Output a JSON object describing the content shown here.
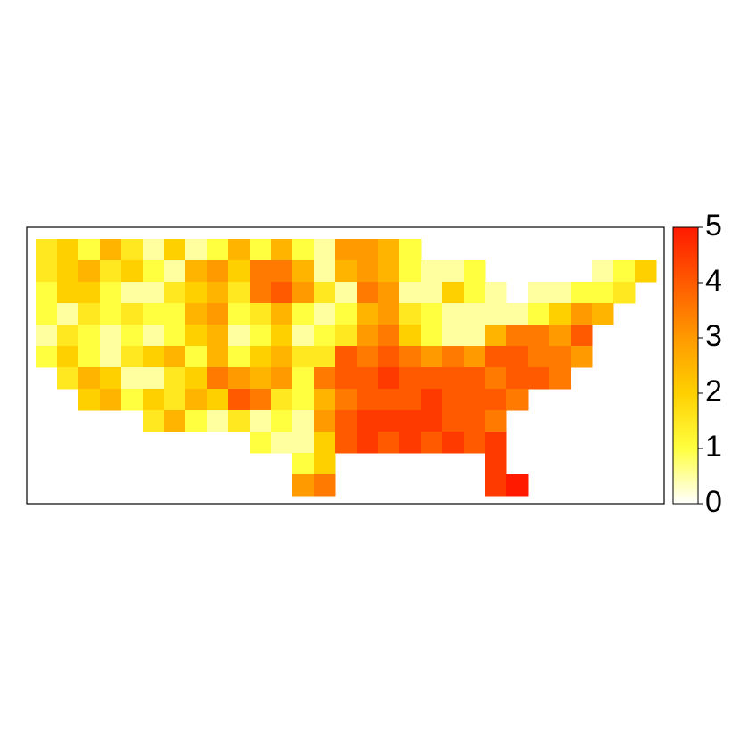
{
  "chart_data": {
    "type": "heatmap",
    "zlim": [
      0,
      5
    ],
    "zticks": [
      0,
      1,
      2,
      3,
      4,
      5
    ],
    "colors": [
      "#ffffff",
      "#ffff40",
      "#ffd000",
      "#ff9a00",
      "#ff5a00",
      "#ff1a00"
    ],
    "values": [
      [
        1.5,
        2,
        1,
        2.5,
        1.5,
        0.5,
        2,
        0.5,
        1,
        2.5,
        1,
        2.5,
        1,
        0.5,
        3,
        3,
        2.5,
        1,
        null,
        null,
        null,
        null,
        null,
        null,
        null,
        null,
        null,
        null,
        null
      ],
      [
        1.5,
        2,
        2.5,
        1.5,
        2,
        1,
        0.5,
        2.5,
        3,
        2,
        3.5,
        3.5,
        2.5,
        0.5,
        2.5,
        3,
        2.5,
        1,
        0.5,
        0.5,
        1,
        null,
        null,
        null,
        null,
        null,
        0.5,
        1,
        2
      ],
      [
        1,
        2,
        2,
        1,
        0.5,
        0.5,
        1.5,
        2,
        2.5,
        1.5,
        3.5,
        4,
        3,
        1.5,
        0.5,
        3.5,
        3,
        0.5,
        0.5,
        2,
        1,
        0.5,
        null,
        0.5,
        0.5,
        1,
        1,
        1.5,
        null
      ],
      [
        1,
        0.5,
        1.5,
        1,
        1.5,
        1,
        1,
        2.5,
        3,
        1,
        1.5,
        2.5,
        1,
        0.5,
        1,
        2.5,
        3,
        1.5,
        1,
        0.5,
        0.5,
        0.5,
        0.5,
        1,
        2,
        3,
        2.5,
        null,
        null
      ],
      [
        0.5,
        1.5,
        1,
        0.5,
        1,
        0.5,
        1,
        2,
        2.5,
        0.5,
        1,
        2,
        0.5,
        1,
        1.5,
        3,
        3.5,
        2,
        1,
        0.5,
        0.5,
        2.5,
        3.5,
        3.5,
        3,
        4,
        null,
        null,
        null
      ],
      [
        1,
        2,
        1,
        0.5,
        1.5,
        2,
        2.5,
        1,
        2.5,
        1,
        2,
        2.5,
        1.5,
        1.5,
        4,
        3.5,
        4,
        3.5,
        3,
        3.5,
        3,
        4,
        4,
        3.5,
        3.5,
        3,
        null,
        null,
        null
      ],
      [
        null,
        1.5,
        2.5,
        2,
        0.5,
        0.5,
        1.5,
        2,
        3.5,
        3,
        2.5,
        3,
        1,
        3.5,
        4,
        4,
        4.5,
        4,
        4,
        4,
        4,
        3.5,
        4,
        4,
        3.5,
        null,
        null,
        null,
        null
      ],
      [
        null,
        null,
        2,
        2.5,
        1,
        2,
        1.5,
        2.5,
        2,
        4,
        3.5,
        1.5,
        1,
        2.5,
        3.5,
        4,
        4,
        4,
        4.5,
        4,
        4,
        4,
        3.5,
        null,
        null,
        null,
        null,
        null,
        null
      ],
      [
        null,
        null,
        null,
        null,
        null,
        1.5,
        2.5,
        1,
        0.5,
        1.5,
        0.5,
        1,
        0.5,
        3,
        4,
        4.5,
        4.5,
        4.5,
        4.5,
        4,
        4,
        3.5,
        null,
        null,
        null,
        null,
        null,
        null,
        null
      ],
      [
        null,
        null,
        null,
        null,
        null,
        null,
        null,
        null,
        null,
        null,
        1,
        0.5,
        0.5,
        2,
        4,
        4.5,
        4,
        4.5,
        4,
        4.5,
        4,
        4.5,
        null,
        null,
        null,
        null,
        null,
        null,
        null
      ],
      [
        null,
        null,
        null,
        null,
        null,
        null,
        null,
        null,
        null,
        null,
        null,
        null,
        1,
        2,
        null,
        null,
        null,
        null,
        null,
        null,
        null,
        4.5,
        null,
        null,
        null,
        null,
        null,
        null,
        null
      ],
      [
        null,
        null,
        null,
        null,
        null,
        null,
        null,
        null,
        null,
        null,
        null,
        null,
        3,
        3.5,
        null,
        null,
        null,
        null,
        null,
        null,
        null,
        4.5,
        5,
        null,
        null,
        null,
        null,
        null,
        null
      ]
    ]
  }
}
